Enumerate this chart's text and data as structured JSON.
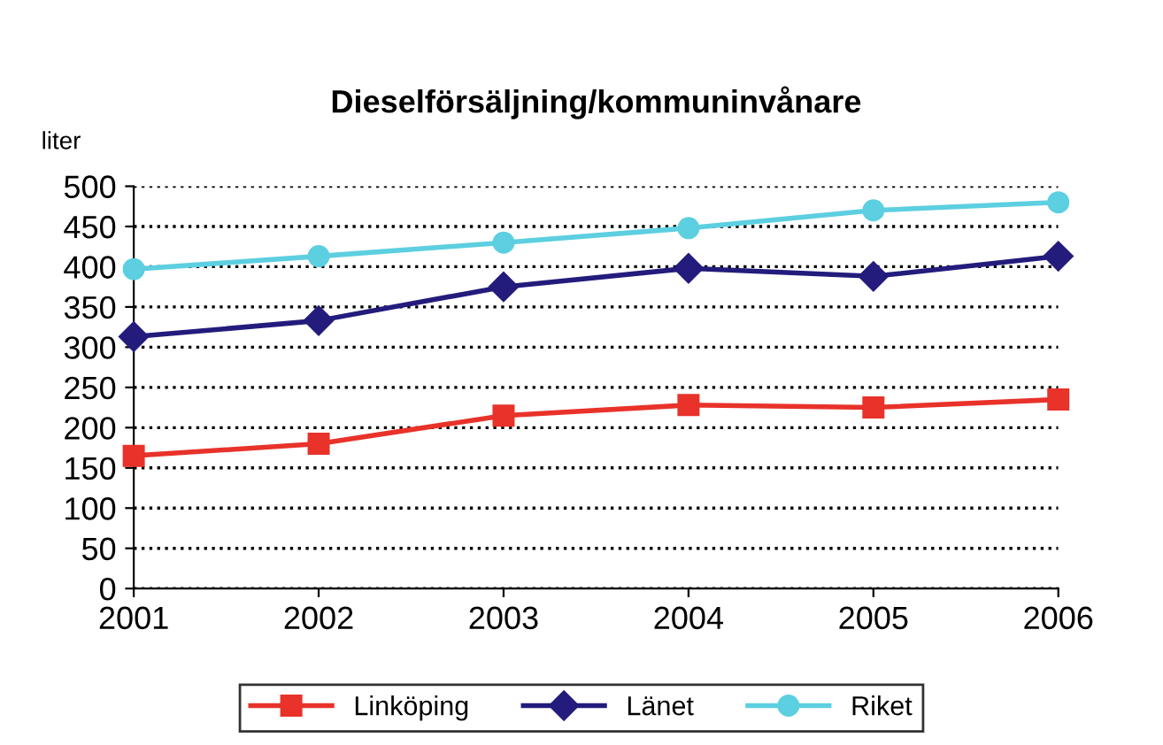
{
  "chart_data": {
    "type": "line",
    "title": "Dieselförsäljning/kommuninvånare",
    "ylabel": "liter",
    "x": [
      2001,
      2002,
      2003,
      2004,
      2005,
      2006
    ],
    "series": [
      {
        "name": "Linköping",
        "color": "#e8322a",
        "marker": "square",
        "values": [
          165,
          180,
          215,
          228,
          225,
          235
        ]
      },
      {
        "name": "Länet",
        "color": "#231c7c",
        "marker": "diamond",
        "values": [
          313,
          333,
          375,
          398,
          388,
          413
        ]
      },
      {
        "name": "Riket",
        "color": "#5ccfe0",
        "marker": "circle",
        "values": [
          397,
          413,
          430,
          448,
          470,
          480
        ]
      }
    ],
    "xlim": [
      2001,
      2006
    ],
    "xticks": [
      2001,
      2002,
      2003,
      2004,
      2005,
      2006
    ],
    "ylim": [
      0,
      500
    ],
    "yticks": [
      0,
      50,
      100,
      150,
      200,
      250,
      300,
      350,
      400,
      450,
      500
    ],
    "grid": "y",
    "legend": "bottom"
  }
}
